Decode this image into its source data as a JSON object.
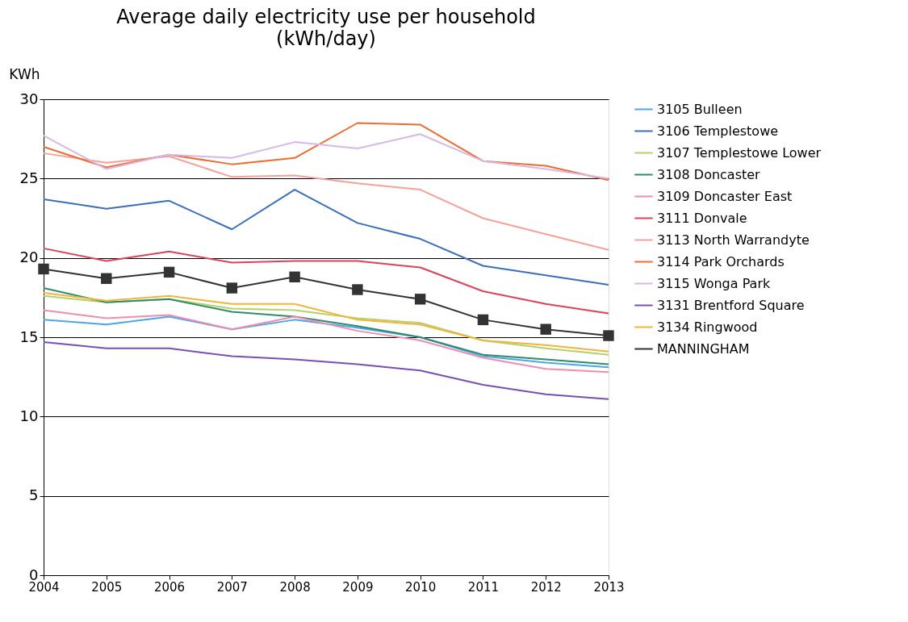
{
  "chart_data": {
    "type": "line",
    "title": "Average daily electricity use per household",
    "subtitle": "(kWh/day)",
    "ylabel": "KWh",
    "x": [
      2004,
      2005,
      2006,
      2007,
      2008,
      2009,
      2010,
      2011,
      2012,
      2013
    ],
    "xlim": [
      2004,
      2013
    ],
    "xticks": [
      2004,
      2005,
      2006,
      2007,
      2008,
      2009,
      2010,
      2011,
      2012,
      2013
    ],
    "ylim": [
      0,
      30
    ],
    "yticks": [
      0,
      5,
      10,
      15,
      20,
      25,
      30
    ],
    "grid": "y",
    "legend": "right",
    "line_style": "solid",
    "series": [
      {
        "name": "3105 Bulleen",
        "color": "#4aa8e8",
        "marker": "none",
        "values": [
          16.1,
          15.8,
          16.3,
          15.5,
          16.1,
          15.6,
          15.0,
          13.8,
          13.4,
          13.1
        ]
      },
      {
        "name": "3106 Templestowe",
        "color": "#3a6fbf",
        "marker": "none",
        "values": [
          23.7,
          23.1,
          23.6,
          21.8,
          24.3,
          22.2,
          21.2,
          19.5,
          18.9,
          18.3
        ]
      },
      {
        "name": "3107 Templestowe Lower",
        "color": "#b5d16a",
        "marker": "none",
        "values": [
          17.6,
          17.2,
          17.4,
          16.8,
          16.7,
          16.2,
          15.9,
          14.8,
          14.3,
          13.9
        ]
      },
      {
        "name": "3108 Doncaster",
        "color": "#2e8b6e",
        "marker": "none",
        "values": [
          18.1,
          17.2,
          17.4,
          16.6,
          16.3,
          15.7,
          15.0,
          13.9,
          13.6,
          13.3
        ]
      },
      {
        "name": "3109 Doncaster East",
        "color": "#f08cb0",
        "marker": "none",
        "values": [
          16.7,
          16.2,
          16.4,
          15.5,
          16.3,
          15.4,
          14.8,
          13.7,
          13.0,
          12.8
        ]
      },
      {
        "name": "3111 Donvale",
        "color": "#e0405a",
        "marker": "none",
        "values": [
          20.6,
          19.8,
          20.4,
          19.7,
          19.8,
          19.8,
          19.4,
          17.9,
          17.1,
          16.5
        ]
      },
      {
        "name": "3113 North Warrandyte",
        "color": "#f7a09a",
        "marker": "none",
        "values": [
          26.6,
          26.0,
          26.4,
          25.1,
          25.2,
          24.7,
          24.3,
          22.5,
          21.5,
          20.5
        ]
      },
      {
        "name": "3114 Park Orchards",
        "color": "#f26a2e",
        "marker": "none",
        "values": [
          27.0,
          25.7,
          26.5,
          25.9,
          26.3,
          28.5,
          28.4,
          26.1,
          25.8,
          24.9
        ]
      },
      {
        "name": "3115 Wonga Park",
        "color": "#d6b8e8",
        "marker": "none",
        "values": [
          27.7,
          25.6,
          26.5,
          26.3,
          27.3,
          26.9,
          27.8,
          26.1,
          25.6,
          25.0
        ]
      },
      {
        "name": "3131 Brentford Square",
        "color": "#7a4fb5",
        "marker": "none",
        "values": [
          14.7,
          14.3,
          14.3,
          13.8,
          13.6,
          13.3,
          12.9,
          12.0,
          11.4,
          11.1
        ]
      },
      {
        "name": "3134 Ringwood",
        "color": "#f2b43a",
        "marker": "none",
        "values": [
          17.8,
          17.3,
          17.6,
          17.1,
          17.1,
          16.1,
          15.8,
          14.8,
          14.5,
          14.1
        ]
      },
      {
        "name": "MANNINGHAM",
        "color": "#333333",
        "marker": "square",
        "values": [
          19.3,
          18.7,
          19.1,
          18.1,
          18.8,
          18.0,
          17.4,
          16.1,
          15.5,
          15.1
        ]
      }
    ]
  }
}
